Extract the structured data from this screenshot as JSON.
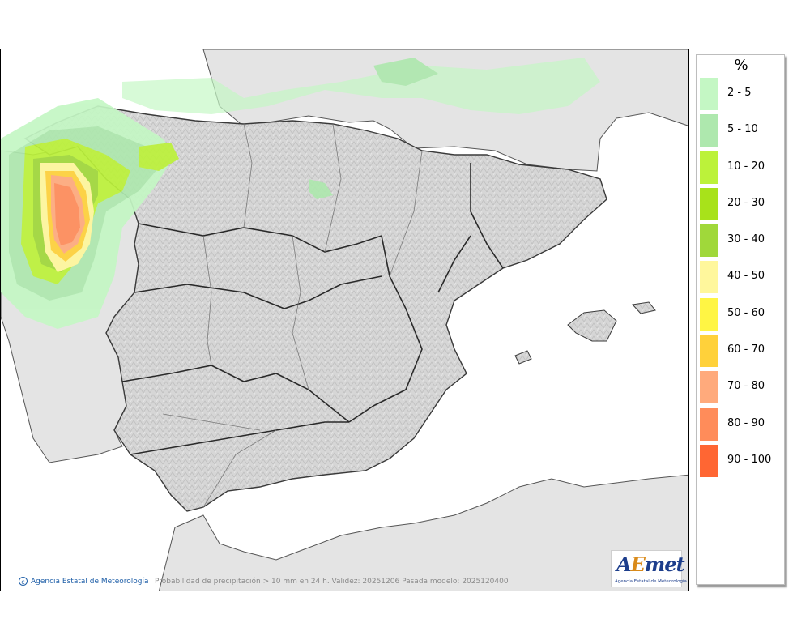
{
  "map": {
    "caption": "Probabilidad de precipitación > 10 mm en 24 h. Validez: 20251206 Pasada modelo: 2025120400",
    "copyright": "Agencia Estatal de Meteorología",
    "logo_word_prefix": "A",
    "logo_word_accent": "E",
    "logo_word_suffix": "met",
    "logo_subtitle": "Agencia Estatal de Meteorología"
  },
  "legend": {
    "title": "%",
    "items": [
      {
        "label": "2 - 5",
        "color": "#c4f7c4"
      },
      {
        "label": "5 - 10",
        "color": "#aee8ae"
      },
      {
        "label": "10 - 20",
        "color": "#bcf23a"
      },
      {
        "label": "20 - 30",
        "color": "#a8e21a"
      },
      {
        "label": "30 - 40",
        "color": "#a0d83a"
      },
      {
        "label": "40 - 50",
        "color": "#fff79c"
      },
      {
        "label": "50 - 60",
        "color": "#fff544"
      },
      {
        "label": "60 - 70",
        "color": "#ffd13a"
      },
      {
        "label": "70 - 80",
        "color": "#ffaa7c"
      },
      {
        "label": "80 - 90",
        "color": "#ff8c5a"
      },
      {
        "label": "90 - 100",
        "color": "#ff6633"
      }
    ]
  },
  "colors": {
    "sea": "#ffffff",
    "land_other": "#e4e4e4",
    "land_spain": "#d9d9d9",
    "border": "#3a3a3a"
  }
}
